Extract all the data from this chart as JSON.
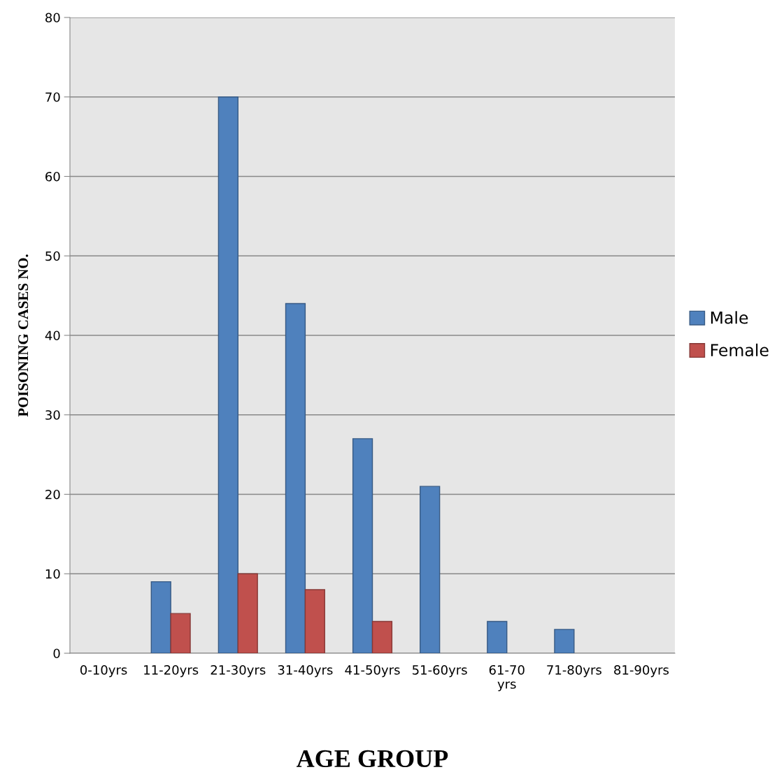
{
  "chart_data": {
    "type": "bar",
    "xlabel": "AGE GROUP",
    "ylabel": "POISONING CASES NO.",
    "categories": [
      "0-10yrs",
      "11-20yrs",
      "21-30yrs",
      "31-40yrs",
      "41-50yrs",
      "51-60yrs",
      "61-70 yrs",
      "71-80yrs",
      "81-90yrs"
    ],
    "series": [
      {
        "name": "Male",
        "color": "#4f81bd",
        "values": [
          null,
          9,
          70,
          44,
          27,
          21,
          4,
          3,
          null
        ]
      },
      {
        "name": "Female",
        "color": "#c0504d",
        "values": [
          null,
          5,
          10,
          8,
          4,
          null,
          null,
          null,
          null
        ]
      }
    ],
    "ylim": [
      0,
      80
    ],
    "yticks": [
      0,
      10,
      20,
      30,
      40,
      50,
      60,
      70,
      80
    ],
    "grid": "y",
    "legend": "right"
  }
}
